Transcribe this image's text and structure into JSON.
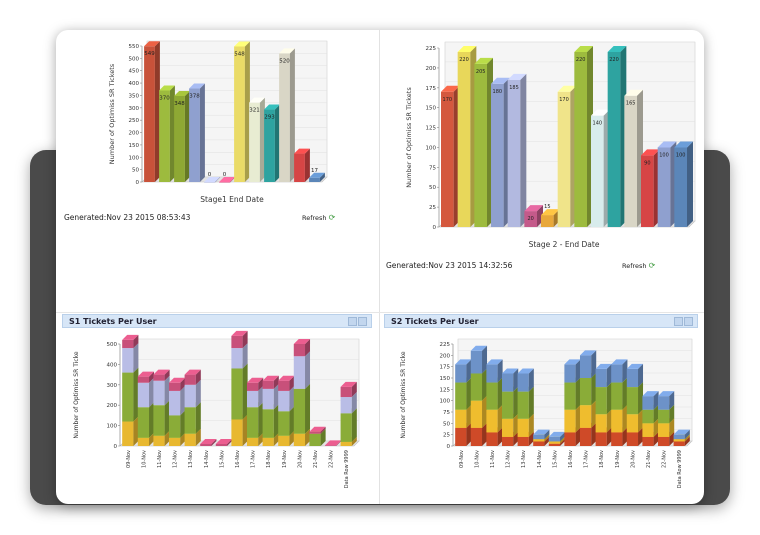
{
  "panels": {
    "top_left": {
      "generated": "Generated:Nov 23 2015 08:53:43",
      "refresh": "Refresh"
    },
    "top_right": {
      "generated": "Generated:Nov 23 2015 14:32:56",
      "refresh": "Refresh"
    },
    "bottom_left": {
      "title": "S1 Tickets Per User"
    },
    "bottom_right": {
      "title": "S2 Tickets Per User"
    }
  },
  "chart_data": [
    {
      "id": "c1",
      "type": "bar",
      "title": "",
      "xlabel": "Stage1 End Date",
      "ylabel": "Number of Optimiss SR Tickets",
      "ylim": [
        0,
        550
      ],
      "yticks": [
        0,
        50,
        100,
        150,
        200,
        250,
        300,
        350,
        400,
        450,
        500,
        550
      ],
      "series": [
        {
          "values": [
            549,
            370,
            348,
            378,
            0,
            0,
            548,
            321,
            293,
            520,
            115,
            17
          ],
          "labels": [
            "549",
            "370",
            "348",
            "378",
            "0",
            "0",
            "548",
            "321",
            "293",
            "520",
            "",
            "17"
          ]
        }
      ],
      "colors": [
        "#c8523a",
        "#9dbb3e",
        "#8ea834",
        "#8fa0cf",
        "#b2b9e0",
        "#d85c8a",
        "#eadb67",
        "#e8ecd2",
        "#2ea3a0",
        "#d9d6c6",
        "#d64545",
        "#5b86b8"
      ]
    },
    {
      "id": "c2",
      "type": "bar",
      "title": "",
      "xlabel": "Stage 2 - End Date",
      "ylabel": "Number of Optimiss SR Tickets",
      "ylim": [
        0,
        225
      ],
      "yticks": [
        0,
        25,
        50,
        75,
        100,
        125,
        150,
        175,
        200,
        225
      ],
      "series": [
        {
          "values": [
            170,
            220,
            205,
            180,
            185,
            20,
            15,
            170,
            220,
            140,
            220,
            165,
            90,
            100,
            100
          ],
          "labels": [
            "170",
            "220",
            "205",
            "180",
            "185",
            "20",
            "15",
            "170",
            "220",
            "140",
            "220",
            "165",
            "90",
            "100",
            "100"
          ]
        }
      ],
      "colors": [
        "#d4583e",
        "#e8d75a",
        "#9dbb3e",
        "#8fa0cf",
        "#b2b9e0",
        "#c45a8a",
        "#e8a83a",
        "#f0e48a",
        "#9dbb3e",
        "#d8ecec",
        "#2ea3a0",
        "#d9d6c6",
        "#d64545",
        "#8fa0cf",
        "#5b86b8"
      ]
    },
    {
      "id": "c3",
      "type": "bar",
      "stacked": true,
      "title": "",
      "ylabel": "Number of Optimiss SR Ticke",
      "ylim": [
        0,
        500
      ],
      "yticks": [
        0,
        100,
        200,
        300,
        400,
        500
      ],
      "categories": [
        "09-Nov",
        "10-Nov",
        "11-Nov",
        "12-Nov",
        "13-Nov",
        "14-Nov",
        "15-Nov",
        "16-Nov",
        "17-Nov",
        "18-Nov",
        "19-Nov",
        "20-Nov",
        "21-Nov",
        "22-Nov",
        "Data Row 9999"
      ],
      "series": [
        {
          "values": [
            120,
            40,
            50,
            40,
            60,
            0,
            0,
            130,
            40,
            40,
            50,
            60,
            0,
            0,
            20
          ]
        },
        {
          "values": [
            240,
            150,
            150,
            110,
            130,
            0,
            0,
            250,
            150,
            140,
            120,
            220,
            60,
            0,
            140
          ]
        },
        {
          "values": [
            120,
            120,
            120,
            120,
            110,
            0,
            0,
            100,
            80,
            100,
            100,
            160,
            0,
            0,
            80
          ]
        },
        {
          "values": [
            40,
            30,
            30,
            40,
            50,
            10,
            10,
            60,
            40,
            40,
            50,
            60,
            10,
            0,
            50
          ]
        }
      ],
      "colors": [
        "#e8b830",
        "#8aac38",
        "#b9bde6",
        "#c8507a"
      ]
    },
    {
      "id": "c4",
      "type": "bar",
      "stacked": true,
      "title": "",
      "ylabel": "Number of Optimiss SR Ticke",
      "ylim": [
        0,
        225
      ],
      "yticks": [
        0,
        25,
        50,
        75,
        100,
        125,
        150,
        175,
        200,
        225
      ],
      "categories": [
        "09-Nov",
        "10-Nov",
        "11-Nov",
        "12-Nov",
        "13-Nov",
        "14-Nov",
        "15-Nov",
        "16-Nov",
        "17-Nov",
        "18-Nov",
        "19-Nov",
        "20-Nov",
        "21-Nov",
        "22-Nov",
        "Data Row 9999"
      ],
      "series": [
        {
          "values": [
            40,
            40,
            30,
            20,
            20,
            10,
            5,
            30,
            40,
            30,
            30,
            30,
            20,
            20,
            10
          ]
        },
        {
          "values": [
            40,
            60,
            50,
            40,
            40,
            5,
            5,
            50,
            50,
            40,
            50,
            40,
            30,
            30,
            5
          ]
        },
        {
          "values": [
            60,
            60,
            60,
            60,
            60,
            0,
            0,
            60,
            60,
            60,
            60,
            60,
            30,
            30,
            0
          ]
        },
        {
          "values": [
            40,
            50,
            40,
            40,
            40,
            10,
            10,
            40,
            50,
            40,
            40,
            40,
            30,
            30,
            10
          ]
        }
      ],
      "colors": [
        "#cf4a28",
        "#efbd2e",
        "#8aac38",
        "#6d92c8"
      ]
    }
  ]
}
